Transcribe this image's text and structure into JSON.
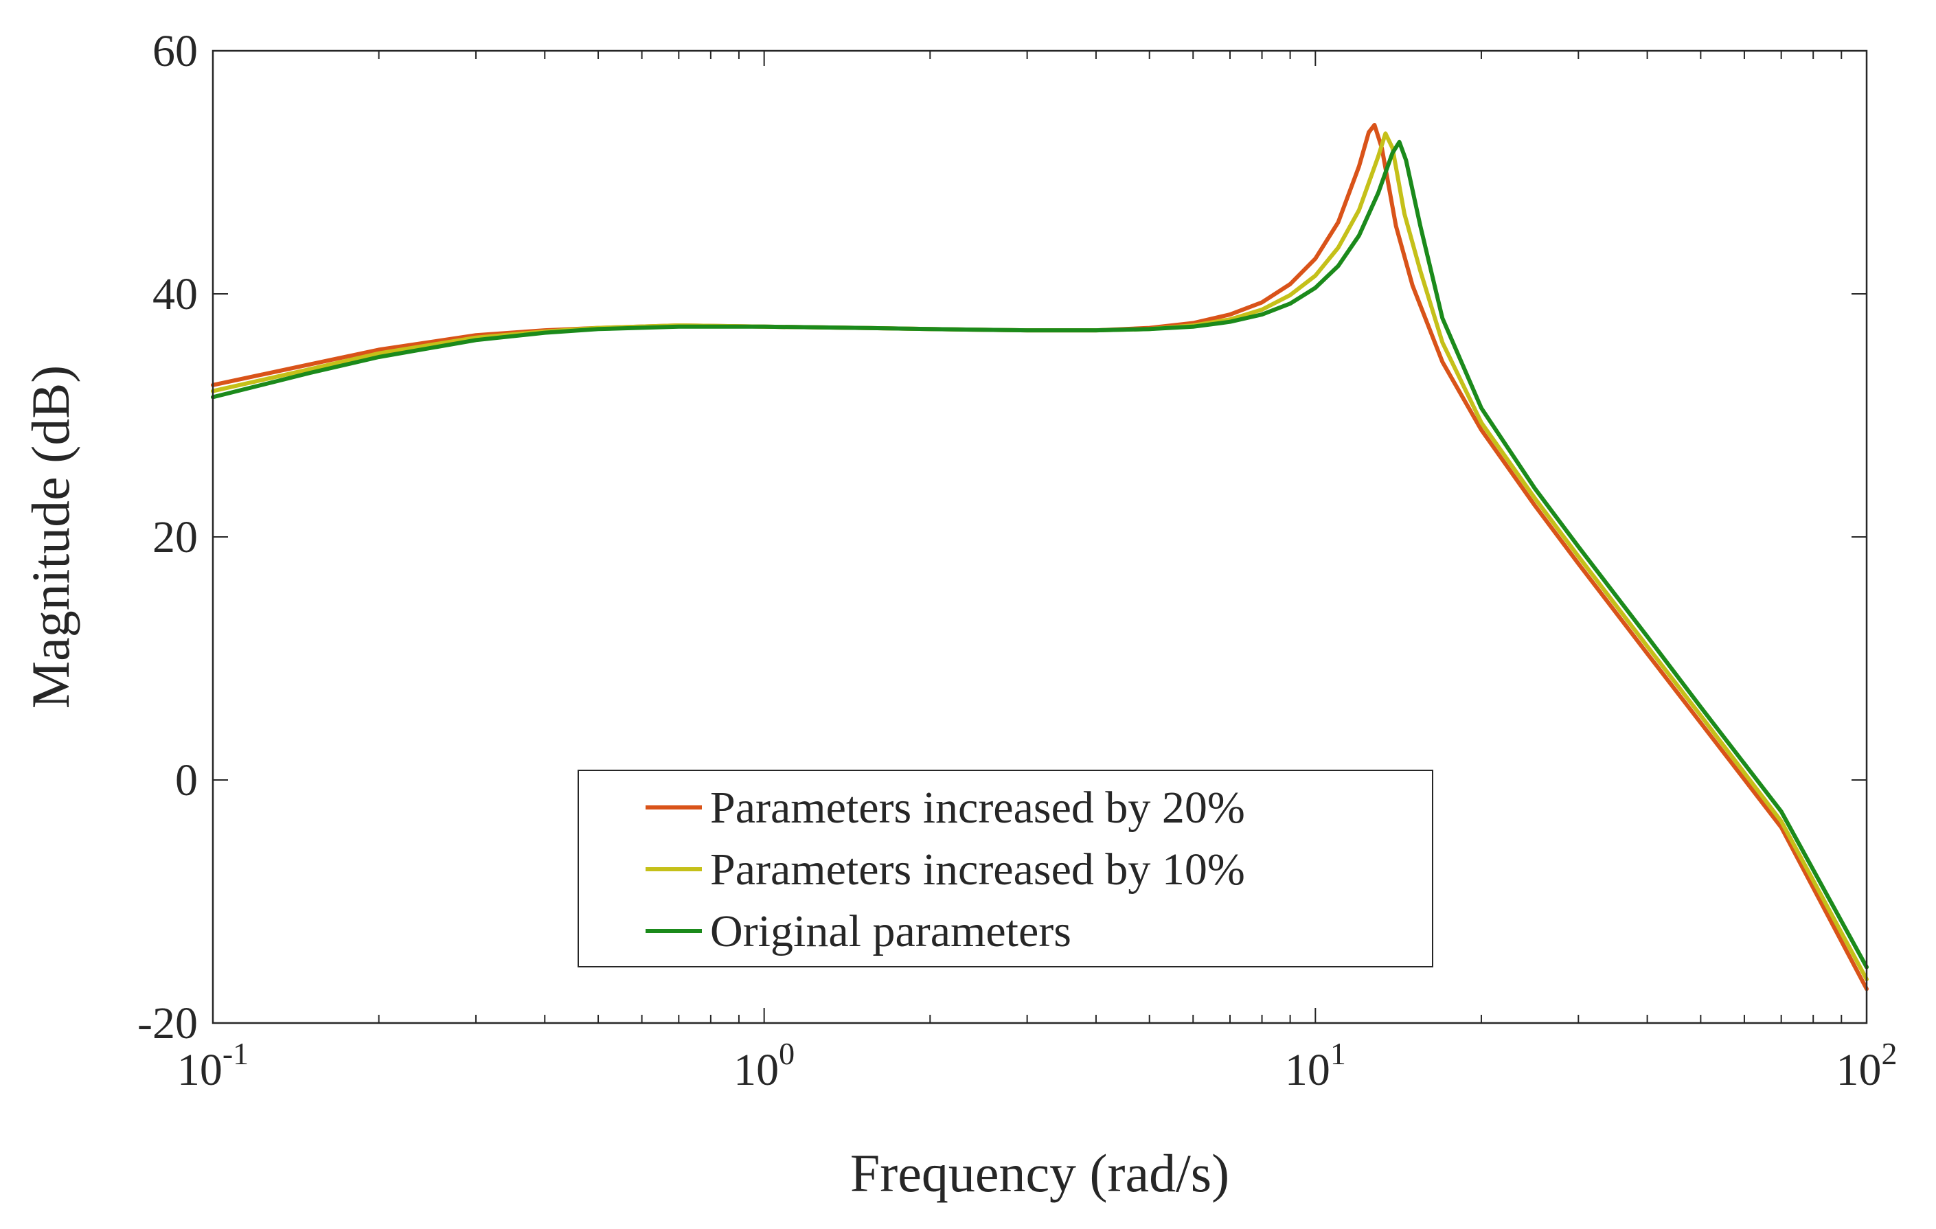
{
  "chart_data": {
    "type": "line",
    "title": "",
    "xlabel": "Frequency (rad/s)",
    "ylabel": "Magnitude (dB)",
    "xscale": "log",
    "xlim": [
      0.1,
      100
    ],
    "ylim": [
      -20,
      60
    ],
    "x_ticks": [
      {
        "value": 0.1,
        "base": "10",
        "exp": "-1"
      },
      {
        "value": 1,
        "base": "10",
        "exp": "0"
      },
      {
        "value": 10,
        "base": "10",
        "exp": "1"
      },
      {
        "value": 100,
        "base": "10",
        "exp": "2"
      }
    ],
    "y_ticks": [
      {
        "value": -20,
        "label": "-20"
      },
      {
        "value": 0,
        "label": "0"
      },
      {
        "value": 20,
        "label": "20"
      },
      {
        "value": 40,
        "label": "40"
      },
      {
        "value": 60,
        "label": "60"
      }
    ],
    "grid": false,
    "legend_position": "bottom-center",
    "series": [
      {
        "name": "Parameters increased by 20%",
        "color": "#D95319",
        "x": [
          0.1,
          0.15,
          0.2,
          0.3,
          0.4,
          0.5,
          0.7,
          1,
          1.5,
          2,
          3,
          4,
          5,
          6,
          7,
          8,
          9,
          10,
          11,
          12,
          12.5,
          12.8,
          13.2,
          14,
          15,
          17,
          20,
          25,
          30,
          40,
          50,
          70,
          100
        ],
        "y": [
          32.5,
          34.2,
          35.4,
          36.6,
          37.0,
          37.2,
          37.4,
          37.3,
          37.2,
          37.1,
          37.0,
          37.0,
          37.2,
          37.6,
          38.3,
          39.3,
          40.8,
          42.9,
          45.9,
          50.5,
          53.3,
          53.9,
          52.0,
          45.6,
          40.7,
          34.4,
          28.8,
          22.6,
          17.8,
          10.4,
          4.7,
          -3.9,
          -17.2
        ]
      },
      {
        "name": "Parameters increased by 10%",
        "color": "#C5C019",
        "x": [
          0.1,
          0.15,
          0.2,
          0.3,
          0.4,
          0.5,
          0.7,
          1,
          1.5,
          2,
          3,
          4,
          5,
          6,
          7,
          8,
          9,
          10,
          11,
          12,
          13,
          13.4,
          13.8,
          14.5,
          15.5,
          17,
          20,
          25,
          30,
          40,
          50,
          70,
          100
        ],
        "y": [
          32.0,
          33.8,
          35.1,
          36.4,
          36.9,
          37.2,
          37.4,
          37.3,
          37.2,
          37.1,
          37.0,
          37.0,
          37.1,
          37.4,
          37.9,
          38.7,
          39.9,
          41.5,
          43.8,
          46.9,
          51.3,
          53.2,
          52.0,
          46.6,
          41.9,
          36.0,
          29.4,
          23.2,
          18.4,
          11.0,
          5.3,
          -3.4,
          -16.4
        ]
      },
      {
        "name": "Original parameters",
        "color": "#1B8A1B",
        "x": [
          0.1,
          0.15,
          0.2,
          0.3,
          0.4,
          0.5,
          0.7,
          1,
          1.5,
          2,
          3,
          4,
          5,
          6,
          7,
          8,
          9,
          10,
          11,
          12,
          13,
          13.8,
          14.2,
          14.6,
          15.5,
          17,
          20,
          25,
          30,
          40,
          50,
          70,
          100
        ],
        "y": [
          31.5,
          33.5,
          34.8,
          36.2,
          36.8,
          37.1,
          37.3,
          37.3,
          37.2,
          37.1,
          37.0,
          37.0,
          37.1,
          37.3,
          37.7,
          38.3,
          39.2,
          40.5,
          42.3,
          44.8,
          48.3,
          51.6,
          52.5,
          51.0,
          45.6,
          38.0,
          30.6,
          24.0,
          19.2,
          11.8,
          6.0,
          -2.6,
          -15.4
        ]
      }
    ]
  }
}
